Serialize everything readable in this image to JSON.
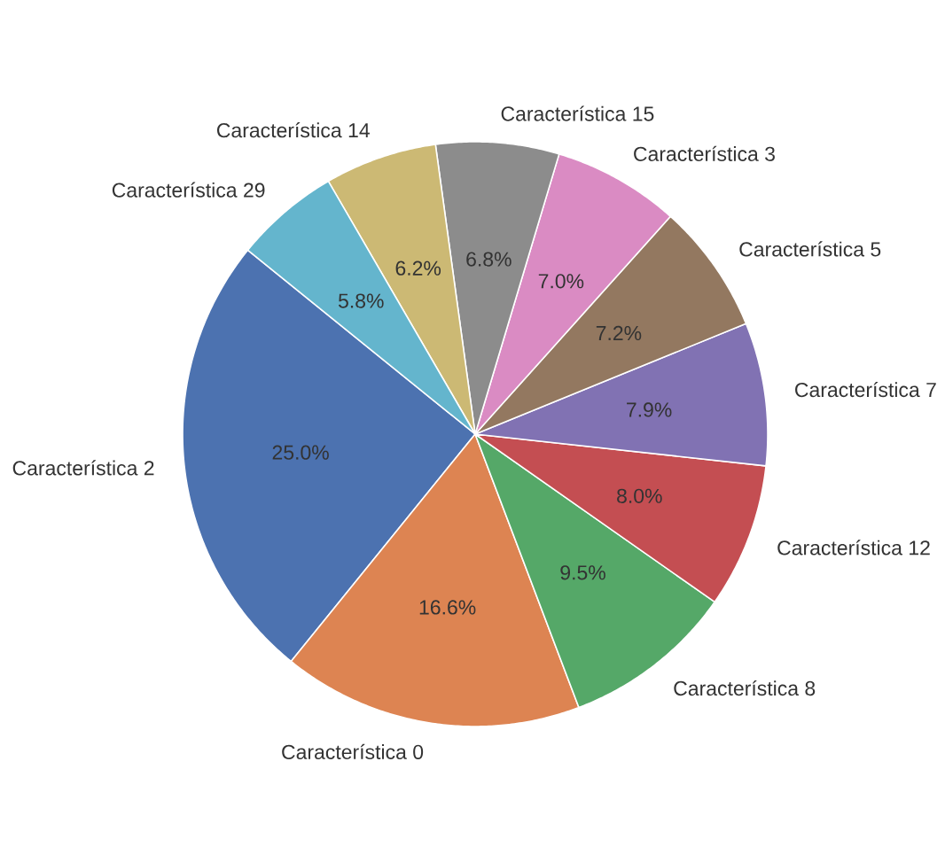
{
  "chart_data": {
    "type": "pie",
    "categories": [
      "Característica 2",
      "Característica 0",
      "Característica 8",
      "Característica 12",
      "Característica 7",
      "Característica 5",
      "Característica 3",
      "Característica 15",
      "Característica 14",
      "Característica 29"
    ],
    "values": [
      25.0,
      16.6,
      9.5,
      8.0,
      7.9,
      7.2,
      7.0,
      6.8,
      6.2,
      5.8
    ],
    "value_labels": [
      "25.0%",
      "16.6%",
      "9.5%",
      "8.0%",
      "7.9%",
      "7.2%",
      "7.0%",
      "6.8%",
      "6.2%",
      "5.8%"
    ],
    "colors": [
      "#4c72b0",
      "#dd8452",
      "#55a868",
      "#c44e52",
      "#8172b3",
      "#937860",
      "#da8bc3",
      "#8c8c8c",
      "#ccb974",
      "#64b5cd"
    ]
  }
}
